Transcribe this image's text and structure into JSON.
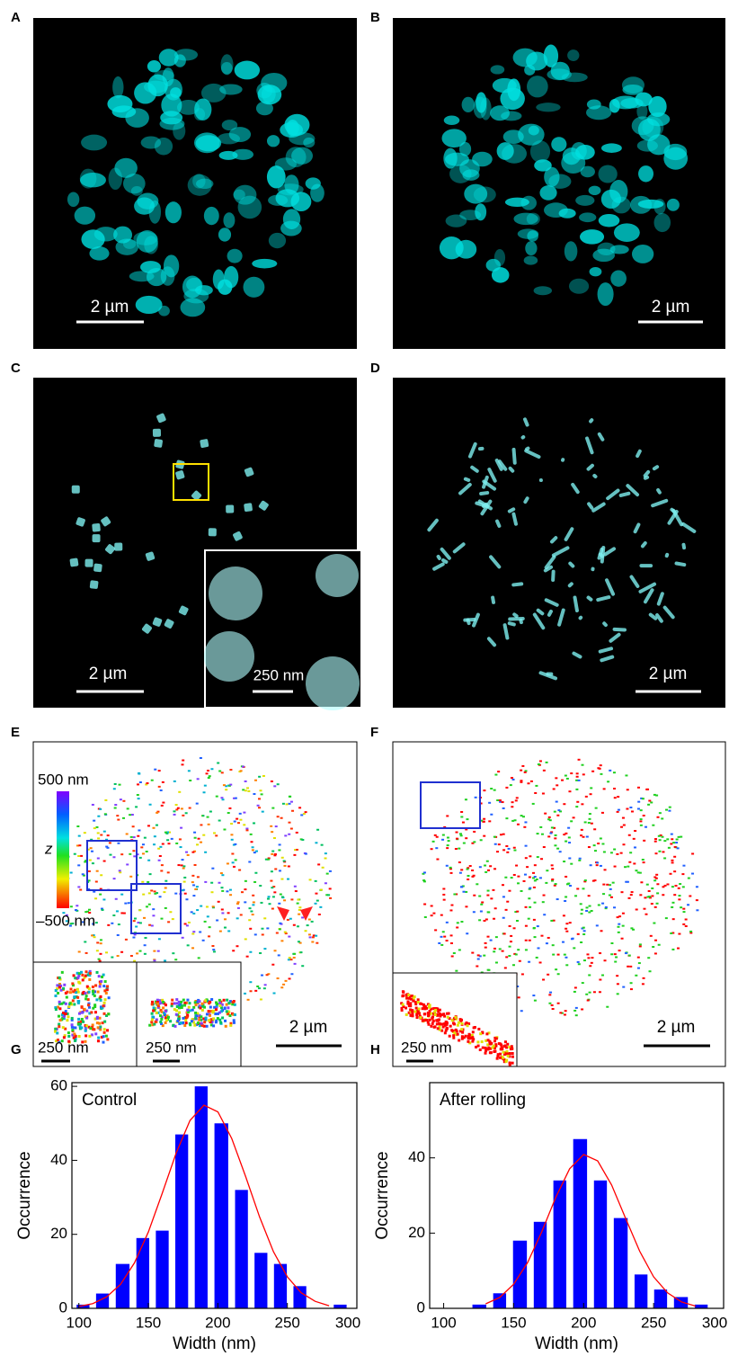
{
  "panels": [
    {
      "label": "A",
      "scale_bar": "2 µm"
    },
    {
      "label": "B",
      "scale_bar": "2 µm"
    },
    {
      "label": "C",
      "scale_bar": "2 µm",
      "inset_scale_bar": "250 nm"
    },
    {
      "label": "D",
      "scale_bar": "2 µm"
    },
    {
      "label": "E",
      "scale_bar": "2 µm",
      "colorbar_top": "500 nm",
      "colorbar_label": "z",
      "colorbar_bottom": "–500 nm",
      "inset_scale_bars": [
        "250 nm",
        "250 nm"
      ]
    },
    {
      "label": "F",
      "scale_bar": "2 µm",
      "inset_scale_bar": "250 nm"
    },
    {
      "label": "G"
    },
    {
      "label": "H"
    }
  ],
  "chart_data": [
    {
      "type": "histogram",
      "annotation": "Control",
      "xlabel": "Width (nm)",
      "ylabel": "Occurrence",
      "bins": [
        96,
        110,
        124,
        139,
        153,
        167,
        181,
        195,
        210,
        224,
        238,
        252,
        266,
        281,
        295
      ],
      "counts": [
        1,
        4,
        12,
        19,
        21,
        47,
        60,
        50,
        32,
        15,
        12,
        6,
        0,
        1
      ],
      "color": "#0000ff",
      "fit": {
        "color": "#ff0000",
        "x": [
          100,
          110,
          120,
          130,
          140,
          150,
          160,
          170,
          180,
          190,
          200,
          210,
          220,
          230,
          240,
          250,
          260,
          270,
          280
        ],
        "y": [
          0.5,
          1.3,
          3.1,
          6.5,
          12.3,
          20.6,
          31.1,
          42.0,
          50.8,
          54.9,
          53.1,
          45.9,
          35.6,
          24.7,
          15.3,
          8.5,
          4.2,
          1.9,
          0.7
        ]
      },
      "xlim": [
        95,
        300
      ],
      "ylim": [
        0,
        61
      ],
      "xticks": [
        100,
        150,
        200,
        250,
        300
      ],
      "yticks": [
        0,
        20,
        40,
        60
      ]
    },
    {
      "type": "histogram",
      "annotation": "After rolling",
      "xlabel": "Width (nm)",
      "ylabel": "Occurrence",
      "bins": [
        118,
        133,
        147,
        162,
        176,
        190,
        205,
        219,
        234,
        248,
        262,
        277,
        291
      ],
      "counts": [
        1,
        4,
        18,
        23,
        34,
        45,
        34,
        24,
        9,
        5,
        3,
        1
      ],
      "color": "#0000ff",
      "fit": {
        "color": "#ff0000",
        "x": [
          130,
          140,
          150,
          160,
          170,
          180,
          190,
          200,
          210,
          220,
          230,
          240,
          250,
          260,
          270,
          280
        ],
        "y": [
          1.2,
          2.9,
          6.4,
          12.2,
          20.3,
          29.4,
          37.1,
          40.9,
          39.2,
          32.8,
          23.9,
          15.2,
          8.4,
          4.1,
          1.7,
          0.6
        ]
      },
      "xlim": [
        90,
        300
      ],
      "ylim": [
        0,
        60
      ],
      "xticks": [
        100,
        150,
        200,
        250,
        300
      ],
      "yticks": [
        0,
        20,
        40
      ]
    }
  ]
}
